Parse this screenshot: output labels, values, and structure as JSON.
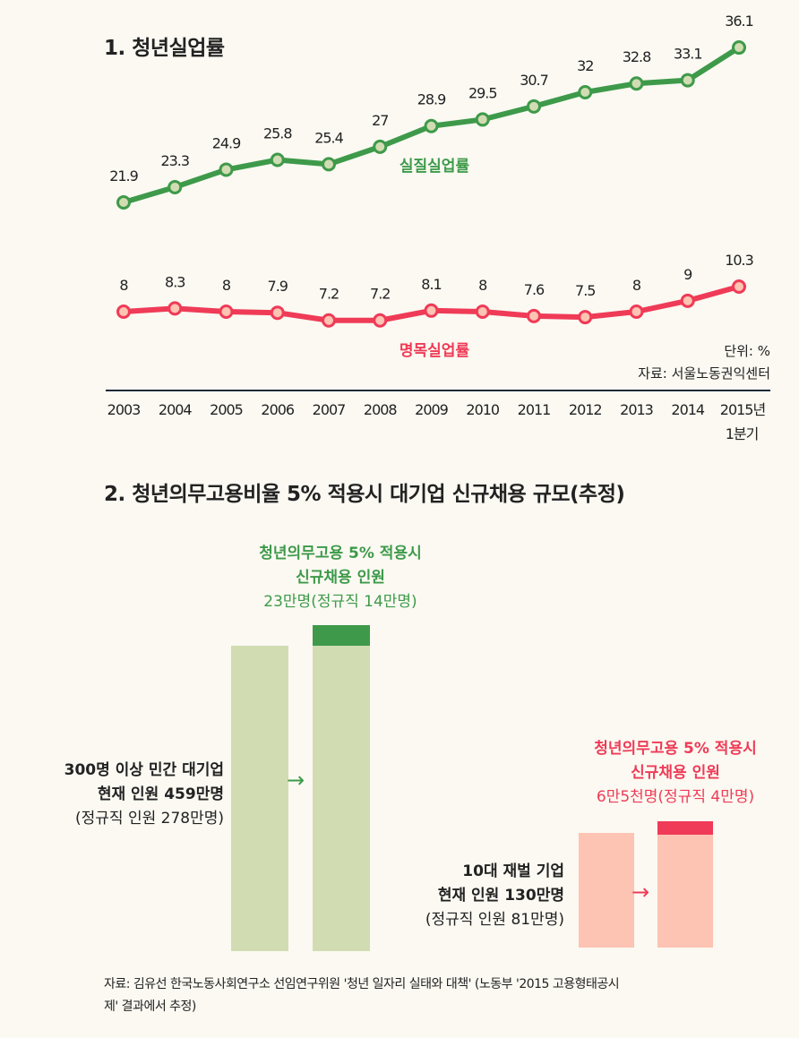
{
  "section1": {
    "title": "1. 청년실업률",
    "unit": "단위: %",
    "source": "자료: 서울노동권익센터"
  },
  "chart_data": [
    {
      "type": "line",
      "title": "1. 청년실업률",
      "x": [
        "2003",
        "2004",
        "2005",
        "2006",
        "2007",
        "2008",
        "2009",
        "2010",
        "2011",
        "2012",
        "2013",
        "2014",
        "2015년"
      ],
      "x_sublabel": "1분기",
      "series": [
        {
          "name": "실질실업률",
          "color": "#3e9a4a",
          "values": [
            21.9,
            23.3,
            24.9,
            25.8,
            25.4,
            27,
            28.9,
            29.5,
            30.7,
            32,
            32.8,
            33.1,
            36.1
          ]
        },
        {
          "name": "명목실업률",
          "color": "#ef3b57",
          "values": [
            8,
            8.3,
            8,
            7.9,
            7.2,
            7.2,
            8.1,
            8,
            7.6,
            7.5,
            8,
            9,
            10.3
          ]
        }
      ],
      "ylabel": "단위: %",
      "grid": false
    },
    {
      "type": "bar",
      "title": "2. 청년의무고용비율 5% 적용시 대기업 신규채용 규모(추정)",
      "groups": [
        {
          "name": "300명 이상 민간 대기업",
          "current": 459,
          "new_hires": 23,
          "unit": "만명"
        },
        {
          "name": "10대 재벌 기업",
          "current": 130,
          "new_hires": 6.5,
          "unit": "만명"
        }
      ]
    }
  ],
  "section2": {
    "title": "2. 청년의무고용비율 5% 적용시 대기업 신규채용 규모(추정)",
    "large": {
      "label1": "300명 이상 민간 대기업",
      "label2": "현재 인원 459만명",
      "label3": "(정규직 인원 278만명)",
      "new1": "청년의무고용 5% 적용시",
      "new2": "신규채용 인원",
      "new3": "23만명(정규직 14만명)"
    },
    "chaebol": {
      "label1": "10대 재벌 기업",
      "label2": "현재 인원 130만명",
      "label3": "(정규직 인원 81만명)",
      "new1": "청년의무고용 5% 적용시",
      "new2": "신규채용 인원",
      "new3": "6만5천명(정규직 4만명)"
    },
    "source1": "자료: 김유선 한국노동사회연구소 선임연구위원 '청년 일자리 실태와 대책' (노동부 '2015 고용형태공시",
    "source2": "제' 결과에서 추정)"
  },
  "colors": {
    "green": "#3e9a4a",
    "light_green": "#d2dcb2",
    "red": "#ef3b57",
    "light_red": "#fdc3b3",
    "bg": "#fbf9f2"
  }
}
